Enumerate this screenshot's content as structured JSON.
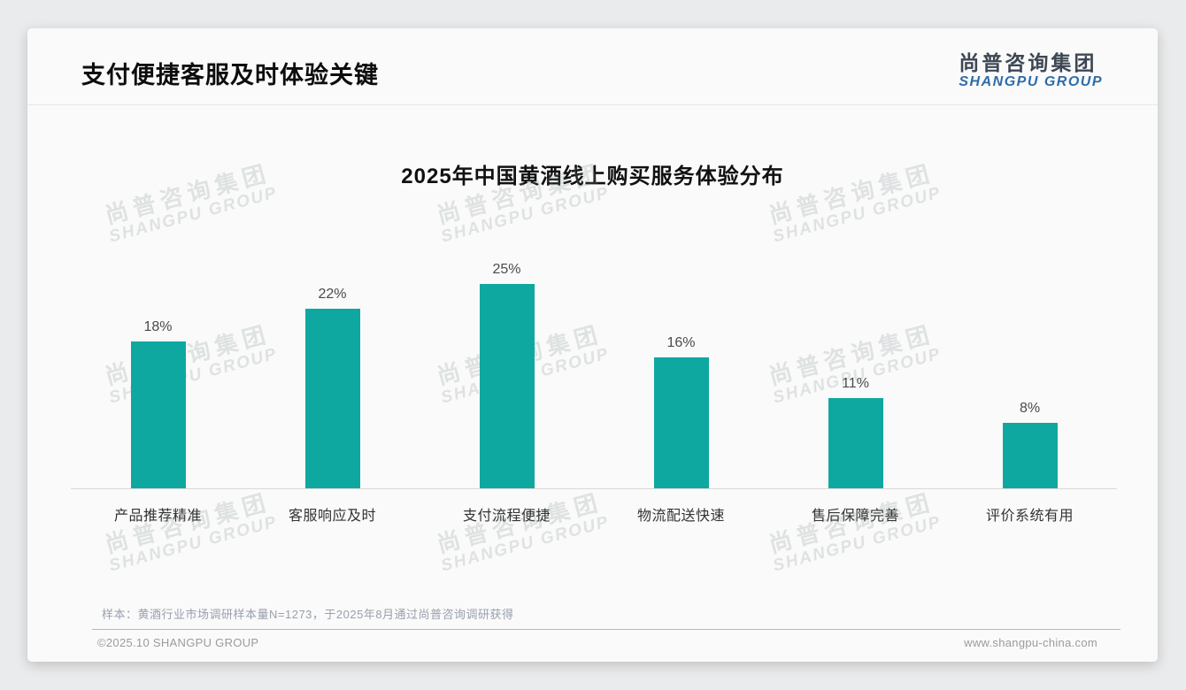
{
  "page": {
    "title": "支付便捷客服及时体验关键"
  },
  "logo": {
    "cn": "尚普咨询集团",
    "en": "SHANGPU GROUP",
    "cn_color": "#3d4754",
    "en_color": "#2e6ca9"
  },
  "chart_data": {
    "type": "bar",
    "title": "2025年中国黄酒线上购买服务体验分布",
    "categories": [
      "产品推荐精准",
      "客服响应及时",
      "支付流程便捷",
      "物流配送快速",
      "售后保障完善",
      "评价系统有用"
    ],
    "values": [
      18,
      22,
      25,
      16,
      11,
      8
    ],
    "value_labels": [
      "18%",
      "22%",
      "25%",
      "16%",
      "11%",
      "8%"
    ],
    "unit": "%",
    "bar_color": "#0FA8A0",
    "ylim": [
      0,
      28
    ],
    "grid": false,
    "legend": null,
    "xlabel": "",
    "ylabel": ""
  },
  "watermark": {
    "cn": "尚普咨询集团",
    "en": "SHANGPU GROUP"
  },
  "note": "样本：黄酒行业市场调研样本量N=1273，于2025年8月通过尚普咨询调研获得",
  "footer": {
    "left": "©2025.10 SHANGPU GROUP",
    "right": "www.shangpu-china.com"
  }
}
